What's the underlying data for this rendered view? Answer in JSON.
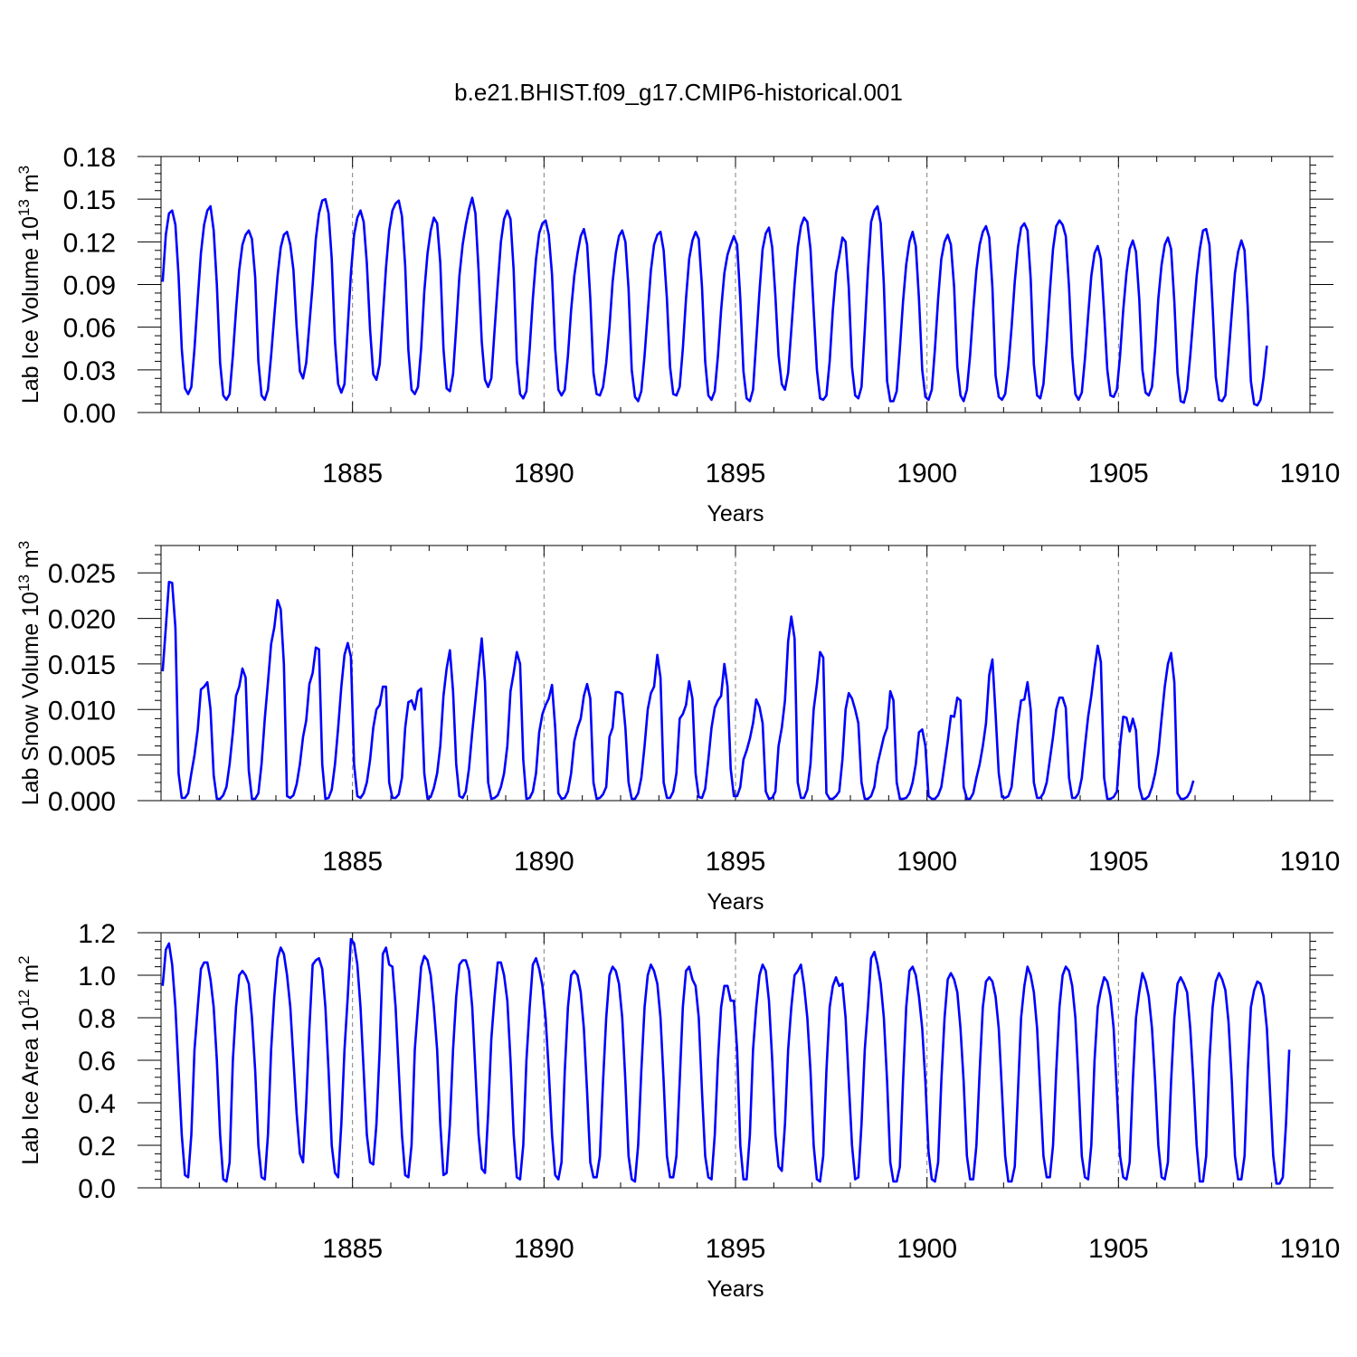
{
  "title": "b.e21.BHIST.f09_g17.CMIP6-historical.001",
  "chart_data": [
    {
      "type": "line",
      "title": "b.e21.BHIST.f09_g17.CMIP6-historical.001",
      "xlabel": "Years",
      "ylabel_main": "Lab Ice Volume 10",
      "ylabel_exp": "13",
      "ylabel_unit": " m",
      "ylabel_unit_exp": "3",
      "xlim": [
        1880.0,
        1910.0
      ],
      "ylim": [
        0.0,
        0.18
      ],
      "x_ticks": [
        1885,
        1890,
        1895,
        1900,
        1905,
        1910
      ],
      "x_tick_labels": [
        "1885",
        "1890",
        "1895",
        "1900",
        "1905",
        "1910"
      ],
      "y_ticks": [
        0.0,
        0.03,
        0.06,
        0.09,
        0.12,
        0.15,
        0.18
      ],
      "y_tick_labels": [
        "0.00",
        "0.03",
        "0.06",
        "0.09",
        "0.12",
        "0.15",
        "0.18"
      ],
      "grid": "vertical dashed at major x ticks",
      "line_color": "#0000ff",
      "x_start": 1880.0417,
      "x_step": 0.0833333,
      "values": [
        0.092,
        0.125,
        0.14,
        0.142,
        0.132,
        0.096,
        0.045,
        0.017,
        0.013,
        0.018,
        0.045,
        0.08,
        0.112,
        0.132,
        0.142,
        0.145,
        0.128,
        0.09,
        0.035,
        0.012,
        0.009,
        0.013,
        0.04,
        0.072,
        0.1,
        0.118,
        0.125,
        0.128,
        0.122,
        0.095,
        0.036,
        0.012,
        0.009,
        0.016,
        0.04,
        0.068,
        0.096,
        0.116,
        0.125,
        0.127,
        0.118,
        0.1,
        0.06,
        0.029,
        0.024,
        0.035,
        0.062,
        0.09,
        0.122,
        0.14,
        0.149,
        0.15,
        0.14,
        0.108,
        0.05,
        0.02,
        0.014,
        0.02,
        0.06,
        0.098,
        0.125,
        0.137,
        0.142,
        0.134,
        0.105,
        0.058,
        0.027,
        0.023,
        0.034,
        0.068,
        0.102,
        0.128,
        0.142,
        0.147,
        0.149,
        0.138,
        0.103,
        0.044,
        0.016,
        0.013,
        0.018,
        0.045,
        0.085,
        0.112,
        0.128,
        0.137,
        0.133,
        0.105,
        0.045,
        0.017,
        0.015,
        0.027,
        0.06,
        0.096,
        0.118,
        0.132,
        0.143,
        0.151,
        0.14,
        0.1,
        0.05,
        0.023,
        0.018,
        0.024,
        0.058,
        0.09,
        0.12,
        0.136,
        0.142,
        0.136,
        0.1,
        0.036,
        0.013,
        0.01,
        0.015,
        0.045,
        0.08,
        0.108,
        0.126,
        0.133,
        0.135,
        0.125,
        0.097,
        0.045,
        0.016,
        0.012,
        0.016,
        0.04,
        0.072,
        0.096,
        0.112,
        0.124,
        0.129,
        0.118,
        0.08,
        0.028,
        0.013,
        0.012,
        0.018,
        0.035,
        0.06,
        0.092,
        0.112,
        0.124,
        0.128,
        0.12,
        0.087,
        0.03,
        0.011,
        0.008,
        0.015,
        0.04,
        0.07,
        0.1,
        0.118,
        0.125,
        0.127,
        0.114,
        0.08,
        0.032,
        0.013,
        0.012,
        0.018,
        0.045,
        0.08,
        0.108,
        0.121,
        0.127,
        0.122,
        0.088,
        0.036,
        0.012,
        0.009,
        0.015,
        0.04,
        0.072,
        0.098,
        0.111,
        0.118,
        0.124,
        0.118,
        0.08,
        0.029,
        0.01,
        0.008,
        0.016,
        0.05,
        0.085,
        0.115,
        0.126,
        0.13,
        0.116,
        0.082,
        0.04,
        0.02,
        0.016,
        0.028,
        0.058,
        0.09,
        0.116,
        0.131,
        0.137,
        0.134,
        0.115,
        0.072,
        0.03,
        0.01,
        0.009,
        0.012,
        0.036,
        0.072,
        0.098,
        0.11,
        0.123,
        0.12,
        0.088,
        0.032,
        0.012,
        0.01,
        0.018,
        0.058,
        0.1,
        0.134,
        0.142,
        0.145,
        0.133,
        0.09,
        0.022,
        0.008,
        0.008,
        0.015,
        0.045,
        0.078,
        0.104,
        0.12,
        0.127,
        0.117,
        0.08,
        0.03,
        0.011,
        0.009,
        0.016,
        0.045,
        0.08,
        0.108,
        0.12,
        0.125,
        0.118,
        0.088,
        0.032,
        0.012,
        0.008,
        0.016,
        0.04,
        0.072,
        0.1,
        0.118,
        0.127,
        0.131,
        0.123,
        0.088,
        0.026,
        0.011,
        0.009,
        0.013,
        0.032,
        0.06,
        0.092,
        0.116,
        0.13,
        0.133,
        0.128,
        0.094,
        0.034,
        0.012,
        0.01,
        0.02,
        0.05,
        0.085,
        0.115,
        0.131,
        0.135,
        0.132,
        0.124,
        0.088,
        0.04,
        0.013,
        0.009,
        0.014,
        0.038,
        0.068,
        0.096,
        0.112,
        0.117,
        0.108,
        0.07,
        0.03,
        0.012,
        0.011,
        0.016,
        0.04,
        0.072,
        0.098,
        0.115,
        0.121,
        0.113,
        0.08,
        0.03,
        0.014,
        0.012,
        0.018,
        0.045,
        0.08,
        0.104,
        0.118,
        0.123,
        0.115,
        0.078,
        0.028,
        0.008,
        0.007,
        0.016,
        0.04,
        0.068,
        0.096,
        0.115,
        0.128,
        0.129,
        0.118,
        0.074,
        0.025,
        0.009,
        0.008,
        0.012,
        0.04,
        0.07,
        0.098,
        0.113,
        0.121,
        0.114,
        0.074,
        0.022,
        0.006,
        0.005,
        0.009,
        0.025,
        0.047
      ]
    },
    {
      "type": "line",
      "xlabel": "Years",
      "ylabel_main": "Lab Snow Volume 10",
      "ylabel_exp": "13",
      "ylabel_unit": " m",
      "ylabel_unit_exp": "3",
      "xlim": [
        1880.0,
        1910.0
      ],
      "ylim": [
        0.0,
        0.028
      ],
      "x_ticks": [
        1885,
        1890,
        1895,
        1900,
        1905,
        1910
      ],
      "x_tick_labels": [
        "1885",
        "1890",
        "1895",
        "1900",
        "1905",
        "1910"
      ],
      "y_ticks": [
        0.0,
        0.005,
        0.01,
        0.015,
        0.02,
        0.025
      ],
      "y_tick_labels": [
        "0.000",
        "0.005",
        "0.010",
        "0.015",
        "0.020",
        "0.025"
      ],
      "grid": "vertical dashed at major x ticks",
      "line_color": "#0000ff",
      "x_start": 1880.0417,
      "x_step": 0.0833333,
      "values": [
        0.0142,
        0.019,
        0.024,
        0.0239,
        0.019,
        0.003,
        0.0003,
        0.0003,
        0.0008,
        0.003,
        0.005,
        0.0078,
        0.0122,
        0.0125,
        0.013,
        0.01,
        0.0028,
        0.0002,
        0.0002,
        0.0006,
        0.0015,
        0.004,
        0.0075,
        0.0115,
        0.0125,
        0.0145,
        0.0135,
        0.0033,
        0.0002,
        0.0002,
        0.0008,
        0.004,
        0.009,
        0.013,
        0.0172,
        0.019,
        0.022,
        0.021,
        0.015,
        0.0005,
        0.0003,
        0.0006,
        0.0018,
        0.004,
        0.007,
        0.0088,
        0.0128,
        0.014,
        0.0168,
        0.0166,
        0.004,
        0.0002,
        0.0003,
        0.0012,
        0.004,
        0.008,
        0.0125,
        0.016,
        0.0173,
        0.0158,
        0.004,
        0.0005,
        0.0003,
        0.0008,
        0.002,
        0.0045,
        0.008,
        0.01,
        0.0105,
        0.0125,
        0.0125,
        0.002,
        0.0003,
        0.0003,
        0.0007,
        0.0025,
        0.008,
        0.0108,
        0.011,
        0.01,
        0.012,
        0.0123,
        0.003,
        0.0002,
        0.0004,
        0.0014,
        0.003,
        0.006,
        0.0115,
        0.0145,
        0.0165,
        0.012,
        0.004,
        0.0005,
        0.0003,
        0.001,
        0.0035,
        0.0075,
        0.011,
        0.0145,
        0.0178,
        0.013,
        0.002,
        0.0002,
        0.0003,
        0.0006,
        0.0015,
        0.003,
        0.006,
        0.012,
        0.014,
        0.0163,
        0.015,
        0.0045,
        0.0002,
        0.0003,
        0.001,
        0.003,
        0.0075,
        0.0095,
        0.0105,
        0.0112,
        0.0127,
        0.008,
        0.0008,
        0.0002,
        0.0003,
        0.001,
        0.003,
        0.0065,
        0.008,
        0.009,
        0.0115,
        0.0128,
        0.0112,
        0.002,
        0.0002,
        0.0003,
        0.0007,
        0.0015,
        0.007,
        0.008,
        0.0119,
        0.0119,
        0.0117,
        0.008,
        0.002,
        0.0002,
        0.0002,
        0.0008,
        0.0025,
        0.006,
        0.01,
        0.0118,
        0.0125,
        0.016,
        0.0135,
        0.002,
        0.0003,
        0.0003,
        0.001,
        0.003,
        0.009,
        0.0095,
        0.0105,
        0.0131,
        0.0112,
        0.003,
        0.0004,
        0.0003,
        0.0013,
        0.0045,
        0.008,
        0.0102,
        0.011,
        0.0115,
        0.015,
        0.0125,
        0.0035,
        0.0005,
        0.0005,
        0.0015,
        0.0045,
        0.0055,
        0.0068,
        0.0085,
        0.0111,
        0.0103,
        0.0085,
        0.001,
        0.0002,
        0.0003,
        0.001,
        0.006,
        0.008,
        0.011,
        0.0175,
        0.0202,
        0.0178,
        0.002,
        0.0003,
        0.0003,
        0.0012,
        0.004,
        0.01,
        0.0128,
        0.0163,
        0.0157,
        0.0008,
        0.0002,
        0.0002,
        0.0005,
        0.001,
        0.0045,
        0.01,
        0.0118,
        0.0112,
        0.01,
        0.0085,
        0.002,
        0.0002,
        0.0002,
        0.0005,
        0.0015,
        0.004,
        0.0055,
        0.007,
        0.008,
        0.012,
        0.011,
        0.002,
        0.0002,
        0.0002,
        0.0003,
        0.0008,
        0.002,
        0.004,
        0.0075,
        0.0078,
        0.006,
        0.0005,
        0.0002,
        0.0002,
        0.0006,
        0.0015,
        0.004,
        0.0065,
        0.0093,
        0.0092,
        0.0113,
        0.011,
        0.0015,
        0.0002,
        0.0002,
        0.0008,
        0.0025,
        0.004,
        0.006,
        0.0085,
        0.0138,
        0.0155,
        0.0095,
        0.003,
        0.0004,
        0.0003,
        0.0005,
        0.0015,
        0.005,
        0.0085,
        0.011,
        0.0111,
        0.013,
        0.01,
        0.002,
        0.0003,
        0.0003,
        0.0008,
        0.002,
        0.0045,
        0.007,
        0.01,
        0.0113,
        0.0113,
        0.0102,
        0.0025,
        0.0003,
        0.0003,
        0.0008,
        0.0025,
        0.006,
        0.0092,
        0.0115,
        0.0145,
        0.017,
        0.0152,
        0.0025,
        0.0002,
        0.0002,
        0.0004,
        0.001,
        0.006,
        0.0092,
        0.0091,
        0.0076,
        0.009,
        0.0077,
        0.0015,
        0.0002,
        0.0002,
        0.0005,
        0.0015,
        0.003,
        0.0052,
        0.009,
        0.0125,
        0.015,
        0.0162,
        0.013,
        0.0008,
        0.0002,
        0.0002,
        0.0004,
        0.001,
        0.0022
      ]
    },
    {
      "type": "line",
      "xlabel": "Years",
      "ylabel_main": "Lab Ice Area 10",
      "ylabel_exp": "12",
      "ylabel_unit": " m",
      "ylabel_unit_exp": "2",
      "xlim": [
        1880.0,
        1910.0
      ],
      "ylim": [
        0.0,
        1.2
      ],
      "x_ticks": [
        1885,
        1890,
        1895,
        1900,
        1905,
        1910
      ],
      "x_tick_labels": [
        "1885",
        "1890",
        "1895",
        "1900",
        "1905",
        "1910"
      ],
      "y_ticks": [
        0.0,
        0.2,
        0.4,
        0.6,
        0.8,
        1.0,
        1.2
      ],
      "y_tick_labels": [
        "0.0",
        "0.2",
        "0.4",
        "0.6",
        "0.8",
        "1.0",
        "1.2"
      ],
      "grid": "vertical dashed at major x ticks",
      "line_color": "#0000ff",
      "x_start": 1880.0417,
      "x_step": 0.0833333,
      "values": [
        0.95,
        1.12,
        1.15,
        1.05,
        0.85,
        0.55,
        0.25,
        0.06,
        0.05,
        0.25,
        0.65,
        0.85,
        1.03,
        1.06,
        1.06,
        0.98,
        0.85,
        0.6,
        0.25,
        0.04,
        0.03,
        0.12,
        0.6,
        0.85,
        1.0,
        1.02,
        1.0,
        0.96,
        0.8,
        0.55,
        0.2,
        0.05,
        0.04,
        0.25,
        0.65,
        0.9,
        1.08,
        1.13,
        1.1,
        1.0,
        0.85,
        0.6,
        0.35,
        0.16,
        0.12,
        0.4,
        0.75,
        1.05,
        1.07,
        1.08,
        1.03,
        0.85,
        0.55,
        0.2,
        0.07,
        0.05,
        0.3,
        0.65,
        0.9,
        1.17,
        1.15,
        1.05,
        0.85,
        0.55,
        0.25,
        0.12,
        0.11,
        0.3,
        0.65,
        1.1,
        1.13,
        1.05,
        1.04,
        0.85,
        0.55,
        0.25,
        0.06,
        0.05,
        0.2,
        0.65,
        0.85,
        1.04,
        1.09,
        1.07,
        1.0,
        0.85,
        0.65,
        0.3,
        0.06,
        0.07,
        0.3,
        0.65,
        0.9,
        1.05,
        1.07,
        1.07,
        1.02,
        0.85,
        0.55,
        0.25,
        0.09,
        0.07,
        0.35,
        0.7,
        0.9,
        1.06,
        1.06,
        1.0,
        0.88,
        0.6,
        0.25,
        0.05,
        0.04,
        0.2,
        0.6,
        0.85,
        1.05,
        1.08,
        1.03,
        0.95,
        0.8,
        0.55,
        0.25,
        0.06,
        0.04,
        0.12,
        0.55,
        0.85,
        1.0,
        1.02,
        1.0,
        0.92,
        0.75,
        0.45,
        0.12,
        0.05,
        0.05,
        0.15,
        0.5,
        0.8,
        1.0,
        1.04,
        1.02,
        0.96,
        0.8,
        0.5,
        0.15,
        0.04,
        0.03,
        0.2,
        0.55,
        0.85,
        1.0,
        1.05,
        1.02,
        0.96,
        0.8,
        0.5,
        0.15,
        0.05,
        0.05,
        0.15,
        0.5,
        0.85,
        1.02,
        1.04,
        0.98,
        0.95,
        0.8,
        0.45,
        0.15,
        0.05,
        0.04,
        0.25,
        0.6,
        0.85,
        0.95,
        0.95,
        0.88,
        0.88,
        0.65,
        0.2,
        0.04,
        0.04,
        0.25,
        0.65,
        0.85,
        1.0,
        1.05,
        1.02,
        0.88,
        0.6,
        0.25,
        0.1,
        0.08,
        0.3,
        0.65,
        0.85,
        1.0,
        1.02,
        1.05,
        0.95,
        0.8,
        0.55,
        0.2,
        0.04,
        0.03,
        0.15,
        0.55,
        0.85,
        0.95,
        0.99,
        0.95,
        0.96,
        0.8,
        0.5,
        0.2,
        0.04,
        0.05,
        0.3,
        0.65,
        0.85,
        1.08,
        1.11,
        1.05,
        0.96,
        0.8,
        0.5,
        0.12,
        0.03,
        0.03,
        0.1,
        0.5,
        0.85,
        1.02,
        1.04,
        1.0,
        0.9,
        0.75,
        0.5,
        0.17,
        0.04,
        0.03,
        0.12,
        0.5,
        0.8,
        0.98,
        1.01,
        0.98,
        0.92,
        0.75,
        0.5,
        0.15,
        0.04,
        0.04,
        0.2,
        0.55,
        0.85,
        0.97,
        0.99,
        0.97,
        0.9,
        0.75,
        0.45,
        0.15,
        0.03,
        0.03,
        0.1,
        0.45,
        0.8,
        0.95,
        1.04,
        1.0,
        0.92,
        0.75,
        0.45,
        0.15,
        0.05,
        0.05,
        0.2,
        0.55,
        0.85,
        1.0,
        1.04,
        1.02,
        0.95,
        0.8,
        0.5,
        0.15,
        0.05,
        0.04,
        0.2,
        0.6,
        0.85,
        0.93,
        0.99,
        0.97,
        0.9,
        0.75,
        0.45,
        0.15,
        0.05,
        0.04,
        0.12,
        0.5,
        0.8,
        0.92,
        1.01,
        0.97,
        0.9,
        0.75,
        0.5,
        0.2,
        0.05,
        0.04,
        0.12,
        0.5,
        0.8,
        0.96,
        0.99,
        0.96,
        0.92,
        0.75,
        0.5,
        0.2,
        0.03,
        0.03,
        0.15,
        0.6,
        0.85,
        0.97,
        1.01,
        0.98,
        0.93,
        0.78,
        0.5,
        0.15,
        0.04,
        0.04,
        0.15,
        0.55,
        0.85,
        0.93,
        0.97,
        0.96,
        0.9,
        0.75,
        0.45,
        0.15,
        0.02,
        0.02,
        0.05,
        0.3,
        0.65
      ]
    }
  ]
}
